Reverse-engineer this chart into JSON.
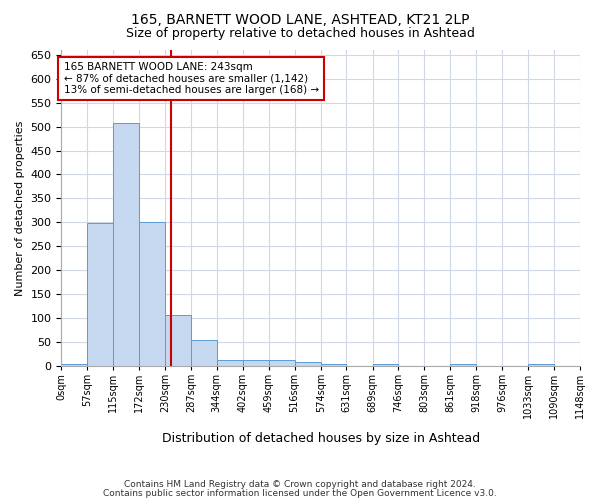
{
  "title1": "165, BARNETT WOOD LANE, ASHTEAD, KT21 2LP",
  "title2": "Size of property relative to detached houses in Ashtead",
  "xlabel": "Distribution of detached houses by size in Ashtead",
  "ylabel": "Number of detached properties",
  "footer1": "Contains HM Land Registry data © Crown copyright and database right 2024.",
  "footer2": "Contains public sector information licensed under the Open Government Licence v3.0.",
  "annotation_line1": "165 BARNETT WOOD LANE: 243sqm",
  "annotation_line2": "← 87% of detached houses are smaller (1,142)",
  "annotation_line3": "13% of semi-detached houses are larger (168) →",
  "bar_edges": [
    0,
    57,
    115,
    172,
    230,
    287,
    344,
    402,
    459,
    516,
    574,
    631,
    689,
    746,
    803,
    861,
    918,
    976,
    1033,
    1090,
    1148
  ],
  "bar_heights": [
    3,
    299,
    507,
    301,
    106,
    54,
    12,
    13,
    12,
    8,
    5,
    0,
    5,
    0,
    0,
    3,
    0,
    0,
    3,
    0
  ],
  "bar_color": "#c5d8f0",
  "bar_edge_color": "#5b9bd5",
  "vline_x": 243,
  "vline_color": "#cc0000",
  "annotation_box_color": "#cc0000",
  "bg_color": "#ffffff",
  "grid_color": "#d0d8e8",
  "ylim": [
    0,
    660
  ],
  "yticks": [
    0,
    50,
    100,
    150,
    200,
    250,
    300,
    350,
    400,
    450,
    500,
    550,
    600,
    650
  ],
  "tick_labels": [
    "0sqm",
    "57sqm",
    "115sqm",
    "172sqm",
    "230sqm",
    "287sqm",
    "344sqm",
    "402sqm",
    "459sqm",
    "516sqm",
    "574sqm",
    "631sqm",
    "689sqm",
    "746sqm",
    "803sqm",
    "861sqm",
    "918sqm",
    "976sqm",
    "1033sqm",
    "1090sqm",
    "1148sqm"
  ]
}
